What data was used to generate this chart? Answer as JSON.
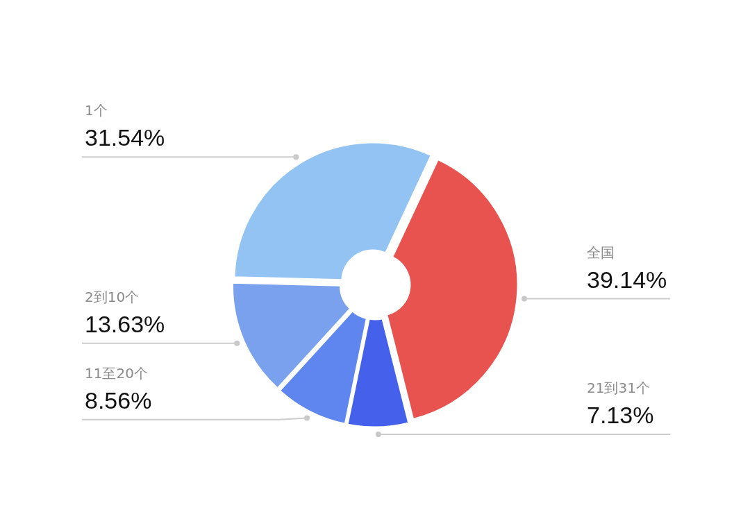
{
  "chart_data": {
    "type": "donut",
    "categories": [
      "全国",
      "21到31个",
      "11至20个",
      "2到10个",
      "1个"
    ],
    "values": [
      39.14,
      7.13,
      8.56,
      13.63,
      31.54
    ],
    "value_labels": [
      "39.14%",
      "7.13%",
      "8.56%",
      "13.63%",
      "31.54%"
    ],
    "colors": [
      "#e8524f",
      "#4560eb",
      "#5f86ee",
      "#7aa1ee",
      "#93c3f3"
    ]
  }
}
